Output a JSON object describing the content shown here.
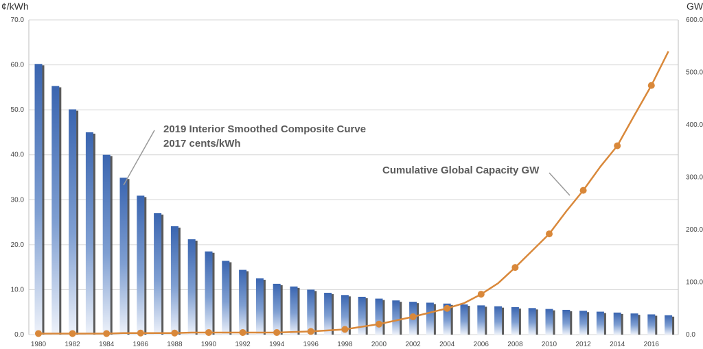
{
  "chart_data": {
    "type": "bar+line",
    "left_axis": {
      "label": "¢/kWh",
      "range": [
        0,
        70
      ],
      "ticks": [
        "0.0",
        "10.0",
        "20.0",
        "30.0",
        "40.0",
        "50.0",
        "60.0",
        "70.0"
      ]
    },
    "right_axis": {
      "label": "GW",
      "range": [
        0,
        600
      ],
      "ticks": [
        "0.0",
        "100.0",
        "200.0",
        "300.0",
        "400.0",
        "500.0",
        "600.0"
      ]
    },
    "x_tick_labels": [
      "1980",
      "1982",
      "1984",
      "1986",
      "1988",
      "1990",
      "1992",
      "1994",
      "1996",
      "1998",
      "2000",
      "2002",
      "2004",
      "2006",
      "2008",
      "2010",
      "2012",
      "2014",
      "2016"
    ],
    "years": [
      1980,
      1981,
      1982,
      1983,
      1984,
      1985,
      1986,
      1987,
      1988,
      1989,
      1990,
      1991,
      1992,
      1993,
      1994,
      1995,
      1996,
      1997,
      1998,
      1999,
      2000,
      2001,
      2002,
      2003,
      2004,
      2005,
      2006,
      2007,
      2008,
      2009,
      2010,
      2011,
      2012,
      2013,
      2014,
      2015,
      2016,
      2017
    ],
    "bar_series": {
      "name": "2019 Interior Smoothed Composite Curve 2017 cents/kWh",
      "values": [
        60.2,
        55.3,
        50.1,
        45.0,
        40.0,
        34.9,
        30.9,
        27.0,
        24.1,
        21.2,
        18.5,
        16.4,
        14.4,
        12.5,
        11.3,
        10.7,
        10.0,
        9.3,
        8.8,
        8.4,
        8.0,
        7.6,
        7.3,
        7.1,
        6.9,
        6.7,
        6.5,
        6.3,
        6.1,
        5.9,
        5.7,
        5.5,
        5.3,
        5.1,
        4.9,
        4.7,
        4.5,
        4.3
      ],
      "color": "#3a65b0"
    },
    "line_series": {
      "name": "Cumulative Global Capacity GW",
      "axis": "right",
      "values": [
        2,
        2,
        2,
        2,
        2,
        3,
        3,
        3,
        3,
        4,
        4,
        4,
        4,
        4,
        4,
        5,
        6,
        8,
        10,
        15,
        20,
        27,
        34,
        42,
        50,
        60,
        77,
        98,
        128,
        160,
        192,
        235,
        275,
        320,
        360,
        418,
        475,
        540
      ],
      "markers_every": 2,
      "color": "#d9883a"
    },
    "annotations": {
      "bar_label_line1": "2019 Interior Smoothed Composite Curve",
      "bar_label_line2": "2017 cents/kWh",
      "line_label": "Cumulative Global Capacity GW"
    }
  }
}
